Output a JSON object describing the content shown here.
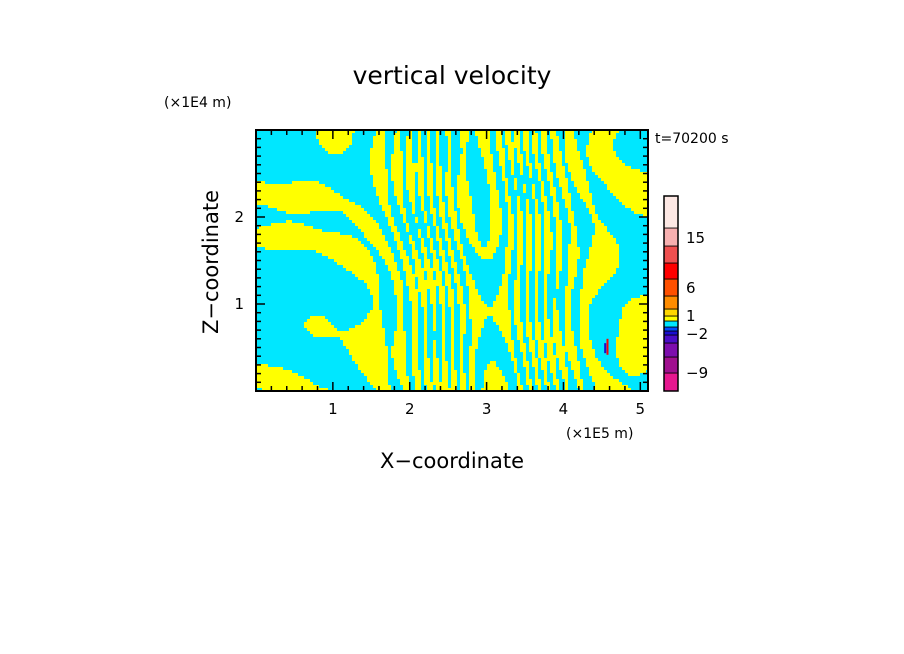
{
  "chart_data": {
    "type": "heatmap",
    "title": "vertical velocity",
    "xlabel": "X−coordinate",
    "ylabel": "Z−coordinate",
    "x_multiplier": "(×1E5 m)",
    "y_multiplier": "(×1E4 m)",
    "time_label": "t=70200 s",
    "x_ticks": [
      "1",
      "2",
      "3",
      "4",
      "5"
    ],
    "x_tick_values": [
      1,
      2,
      3,
      4,
      5
    ],
    "y_ticks": [
      "1",
      "2"
    ],
    "y_tick_values": [
      1,
      2
    ],
    "xlim": [
      0,
      5.1
    ],
    "ylim": [
      0,
      3.0
    ],
    "colorbar": {
      "labels": [
        "15",
        "6",
        "1",
        "−2",
        "−9"
      ],
      "label_values": [
        15,
        6,
        1,
        -2,
        -9
      ],
      "levels": [
        {
          "color": "#e6178f"
        },
        {
          "color": "#a0108f"
        },
        {
          "color": "#7d0dad"
        },
        {
          "color": "#4a0dc7"
        },
        {
          "color": "#1a0ed0"
        },
        {
          "color": "#004cff"
        },
        {
          "color": "#00e7ff"
        },
        {
          "color": "#ffff00"
        },
        {
          "color": "#ffd700"
        },
        {
          "color": "#ff8c00"
        },
        {
          "color": "#ff5000"
        },
        {
          "color": "#ff0000"
        },
        {
          "color": "#f05050"
        },
        {
          "color": "#f7b0b0"
        },
        {
          "color": "#fde8e4"
        }
      ]
    },
    "field_colors": {
      "positive": "#ffff00",
      "negative": "#00e7ff",
      "strong_positive": "#ff0000",
      "strong_negative": "#1a0ed0"
    }
  }
}
